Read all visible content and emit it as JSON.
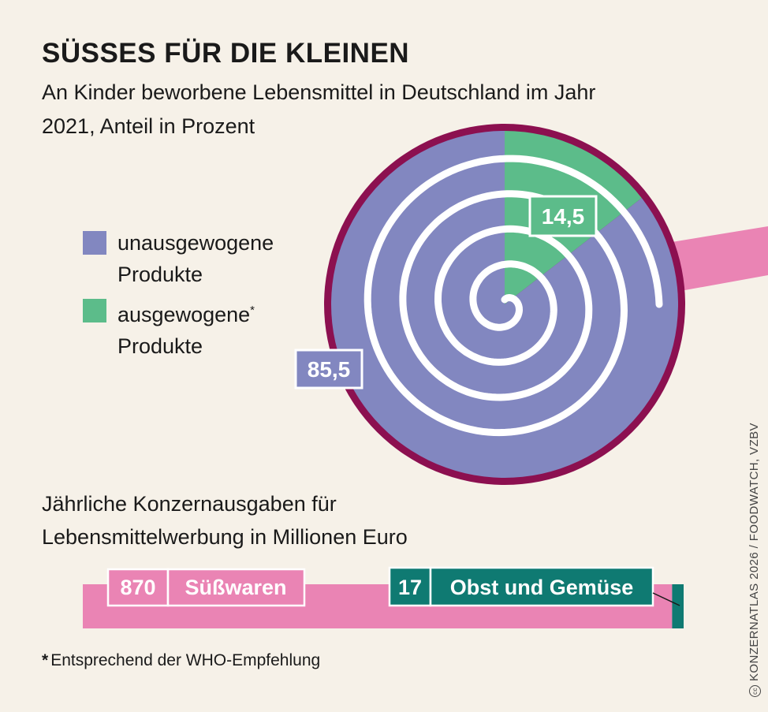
{
  "header": {
    "title": "SÜSSES FÜR DIE KLEINEN",
    "subtitle": "An Kinder beworbene Lebensmittel in Deutschland im Jahr 2021, Anteil in Prozent"
  },
  "colors": {
    "unbalanced": "#8287c0",
    "balanced": "#5cbc8a",
    "ring": "#8c1050",
    "pink": "#ea84b4",
    "teal": "#0f7a72",
    "background": "#f6f1e8"
  },
  "chart_data": [
    {
      "type": "pie",
      "series": [
        {
          "name": "unausgewogene Produkte",
          "value": 85.5,
          "label": "85,5",
          "color": "#8287c0"
        },
        {
          "name": "ausgewogene* Produkte",
          "value": 14.5,
          "label": "14,5",
          "color": "#5cbc8a"
        }
      ]
    },
    {
      "type": "bar",
      "title": "Jährliche Konzernausgaben für Lebensmittelwerbung in Millionen Euro",
      "series": [
        {
          "name": "Süßwaren",
          "value": 870,
          "label": "870",
          "color": "#ea84b4"
        },
        {
          "name": "Obst und Gemüse",
          "value": 17,
          "label": "17",
          "color": "#0f7a72"
        }
      ]
    }
  ],
  "legend": {
    "items": [
      {
        "label": "unausgewogene Produkte",
        "footnote_mark": "",
        "color": "#8287c0"
      },
      {
        "label": "ausgewogene",
        "label2": "Produkte",
        "footnote_mark": "*",
        "color": "#5cbc8a"
      }
    ]
  },
  "footnote": {
    "mark": "*",
    "text": "Entsprechend der WHO-Empfehlung"
  },
  "credit": "KONZERNATLAS 2026 / FOODWATCH, VZBV",
  "credit_icon": "cc"
}
